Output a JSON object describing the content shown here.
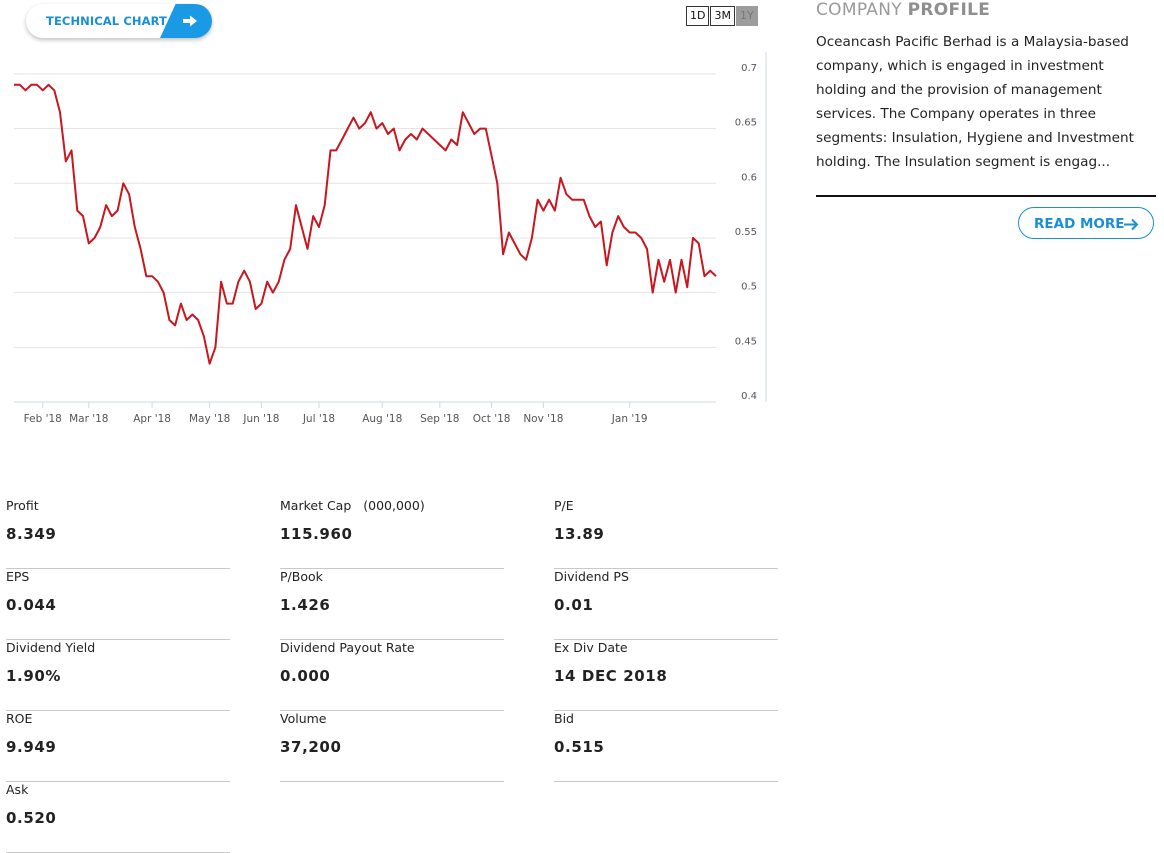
{
  "technical_chart": {
    "label": "TECHNICAL CHART",
    "icon": "arrow-right-icon"
  },
  "range_buttons": [
    {
      "label": "1D",
      "active": false
    },
    {
      "label": "3M",
      "active": false
    },
    {
      "label": "1Y",
      "active": true
    }
  ],
  "chart_data": {
    "type": "line",
    "line_color": "#c8171e",
    "ylim": [
      0.4,
      0.72
    ],
    "y_ticks": [
      "0.4",
      "0.45",
      "0.5",
      "0.55",
      "0.6",
      "0.65",
      "0.7"
    ],
    "x_ticks": [
      "Feb '18",
      "Mar '18",
      "Apr '18",
      "May '18",
      "Jun '18",
      "Jul '18",
      "Aug '18",
      "Sep '18",
      "Oct '18",
      "Nov '18",
      "Jan '19"
    ],
    "x_tick_index": [
      5,
      13,
      24,
      34,
      43,
      53,
      64,
      74,
      83,
      92,
      107
    ],
    "grid": true,
    "series": [
      {
        "values": [
          0.69,
          0.69,
          0.685,
          0.69,
          0.69,
          0.685,
          0.69,
          0.685,
          0.665,
          0.62,
          0.63,
          0.575,
          0.57,
          0.545,
          0.55,
          0.56,
          0.58,
          0.57,
          0.575,
          0.6,
          0.59,
          0.56,
          0.54,
          0.515,
          0.515,
          0.51,
          0.5,
          0.475,
          0.47,
          0.49,
          0.475,
          0.48,
          0.475,
          0.46,
          0.435,
          0.45,
          0.51,
          0.49,
          0.49,
          0.51,
          0.52,
          0.51,
          0.485,
          0.49,
          0.51,
          0.5,
          0.51,
          0.53,
          0.54,
          0.58,
          0.56,
          0.54,
          0.57,
          0.56,
          0.58,
          0.63,
          0.63,
          0.64,
          0.65,
          0.66,
          0.65,
          0.655,
          0.665,
          0.65,
          0.655,
          0.645,
          0.65,
          0.63,
          0.64,
          0.645,
          0.64,
          0.65,
          0.645,
          0.64,
          0.635,
          0.63,
          0.64,
          0.635,
          0.665,
          0.655,
          0.645,
          0.65,
          0.65,
          0.625,
          0.6,
          0.535,
          0.555,
          0.545,
          0.535,
          0.53,
          0.55,
          0.585,
          0.575,
          0.585,
          0.575,
          0.605,
          0.59,
          0.585,
          0.585,
          0.585,
          0.57,
          0.56,
          0.565,
          0.525,
          0.555,
          0.57,
          0.56,
          0.555,
          0.555,
          0.55,
          0.54,
          0.5,
          0.53,
          0.51,
          0.53,
          0.5,
          0.53,
          0.505,
          0.55,
          0.545,
          0.515,
          0.52,
          0.515
        ]
      }
    ]
  },
  "profile": {
    "title_light": "COMPANY",
    "title_bold": "PROFILE",
    "lines": [
      "Oceancash Pacific Berhad is a Malaysia-based",
      "company, which is engaged in investment",
      "holding and the provision of management",
      "services. The Company operates in three",
      "segments: Insulation, Hygiene and Investment",
      "holding. The Insulation segment is engag..."
    ],
    "read_more": "READ MORE",
    "read_more_icon": "arrow-right-icon"
  },
  "stats": [
    {
      "label": "Profit",
      "value": "8.349"
    },
    {
      "label": "Market Cap",
      "sub": "(000,000)",
      "value": "115.960"
    },
    {
      "label": "P/E",
      "value": "13.89"
    },
    {
      "label": "EPS",
      "value": "0.044"
    },
    {
      "label": "P/Book",
      "value": "1.426"
    },
    {
      "label": "Dividend PS",
      "value": "0.01"
    },
    {
      "label": "Dividend Yield",
      "value": "1.90%"
    },
    {
      "label": "Dividend Payout Rate",
      "value": "0.000"
    },
    {
      "label": "Ex Div Date",
      "value": "14 DEC 2018"
    },
    {
      "label": "ROE",
      "value": "9.949"
    },
    {
      "label": "Volume",
      "value": "37,200"
    },
    {
      "label": "Bid",
      "value": "0.515"
    },
    {
      "label": "Ask",
      "value": "0.520"
    }
  ]
}
